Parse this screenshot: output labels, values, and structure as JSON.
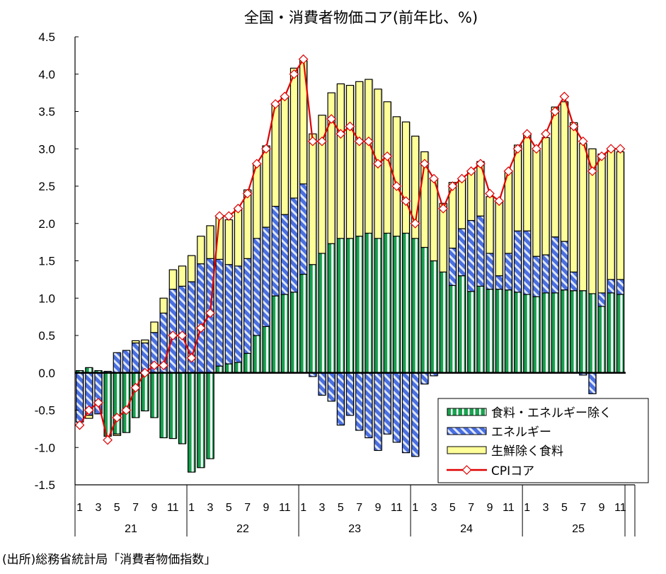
{
  "chart_data": {
    "type": "bar",
    "stacked": true,
    "title": "全国・消費者物価コア(前年比、%)",
    "ylim": [
      -1.5,
      4.5
    ],
    "yticks": [
      "4.5",
      "4.0",
      "3.5",
      "3.0",
      "2.5",
      "2.0",
      "1.5",
      "1.0",
      "0.5",
      "0.0",
      "-0.5",
      "-1.0",
      "-1.5"
    ],
    "ytick_values": [
      4.5,
      4.0,
      3.5,
      3.0,
      2.5,
      2.0,
      1.5,
      1.0,
      0.5,
      0.0,
      -0.5,
      -1.0,
      -1.5
    ],
    "month_labels": [
      "1",
      "3",
      "5",
      "7",
      "9",
      "11"
    ],
    "years": [
      "21",
      "22",
      "23",
      "24",
      "25"
    ],
    "months_per_year": [
      12,
      12,
      12,
      12,
      11
    ],
    "legend_position": "bottom-right",
    "legend": {
      "core": "食料・エネルギー除く",
      "energy": "エネルギー",
      "food": "生鮮除く食料",
      "cpi": "CPIコア"
    },
    "colors": {
      "core": "#1aa350",
      "energy": "#4a6fe0",
      "food": "#ffff99",
      "cpi": "#e00000"
    },
    "series": [
      {
        "name": "食料・エネルギー除く",
        "key": "core",
        "values": [
          0.03,
          0.07,
          0.03,
          -0.85,
          -0.82,
          -0.8,
          -0.6,
          -0.51,
          -0.6,
          -0.87,
          -0.88,
          -0.95,
          -1.33,
          -1.27,
          -1.15,
          0.09,
          0.12,
          0.14,
          0.26,
          0.5,
          0.62,
          1.03,
          1.05,
          1.08,
          1.32,
          1.45,
          1.6,
          1.73,
          1.8,
          1.8,
          1.83,
          1.87,
          1.8,
          1.87,
          1.83,
          1.87,
          1.8,
          1.68,
          1.5,
          1.35,
          1.17,
          1.3,
          1.09,
          1.16,
          1.12,
          1.12,
          1.11,
          1.08,
          1.05,
          1.02,
          1.07,
          1.07,
          1.11,
          1.1,
          1.1,
          1.06,
          0.89,
          1.07,
          1.05
        ]
      },
      {
        "name": "エネルギー",
        "key": "energy",
        "values": [
          -0.66,
          -0.57,
          -0.55,
          0.02,
          0.27,
          0.3,
          0.4,
          0.4,
          0.54,
          0.8,
          1.12,
          1.16,
          1.22,
          1.46,
          1.53,
          1.43,
          1.33,
          1.29,
          1.27,
          1.3,
          1.33,
          1.2,
          1.07,
          1.26,
          1.21,
          -0.05,
          -0.3,
          -0.38,
          -0.7,
          -0.57,
          -0.77,
          -0.87,
          -1.04,
          -0.82,
          -0.93,
          -1.07,
          -1.12,
          -0.15,
          -0.04,
          0.0,
          0.5,
          0.63,
          0.95,
          0.94,
          0.48,
          0.18,
          0.49,
          0.82,
          0.85,
          0.54,
          0.51,
          0.75,
          0.65,
          0.25,
          -0.03,
          -0.28,
          0.18,
          0.18,
          0.2
        ]
      },
      {
        "name": "生鮮除く食料",
        "key": "food",
        "values": [
          0.0,
          -0.04,
          0.0,
          0.0,
          -0.02,
          0.0,
          0.03,
          0.04,
          0.14,
          0.2,
          0.26,
          0.27,
          0.35,
          0.37,
          0.44,
          0.58,
          0.6,
          0.77,
          0.92,
          1.0,
          1.09,
          1.37,
          1.58,
          1.74,
          1.65,
          1.75,
          1.85,
          2.02,
          2.07,
          2.05,
          2.07,
          2.06,
          2.0,
          1.76,
          1.6,
          1.49,
          1.37,
          1.28,
          1.1,
          0.92,
          0.88,
          0.67,
          0.66,
          0.73,
          0.76,
          1.0,
          1.1,
          1.15,
          1.3,
          1.42,
          1.57,
          1.74,
          1.87,
          2.0,
          1.97,
          1.94,
          1.86,
          1.75,
          1.71
        ]
      },
      {
        "name": "CPIコア",
        "key": "cpi",
        "type": "line",
        "values": [
          -0.7,
          -0.5,
          -0.4,
          -0.9,
          -0.6,
          -0.5,
          -0.2,
          0.0,
          0.1,
          0.1,
          0.5,
          0.5,
          0.2,
          0.6,
          0.8,
          2.1,
          2.1,
          2.2,
          2.4,
          2.8,
          3.0,
          3.6,
          3.7,
          4.0,
          4.2,
          3.1,
          3.1,
          3.4,
          3.2,
          3.3,
          3.1,
          3.1,
          2.8,
          2.9,
          2.5,
          2.3,
          2.0,
          2.8,
          2.6,
          2.2,
          2.5,
          2.6,
          2.7,
          2.8,
          2.4,
          2.3,
          2.7,
          3.0,
          3.2,
          3.0,
          3.2,
          3.5,
          3.7,
          3.3,
          3.1,
          2.7,
          2.9,
          3.0,
          3.0
        ]
      }
    ]
  },
  "footnote": "(出所)総務省統計局「消費者物価指数」"
}
